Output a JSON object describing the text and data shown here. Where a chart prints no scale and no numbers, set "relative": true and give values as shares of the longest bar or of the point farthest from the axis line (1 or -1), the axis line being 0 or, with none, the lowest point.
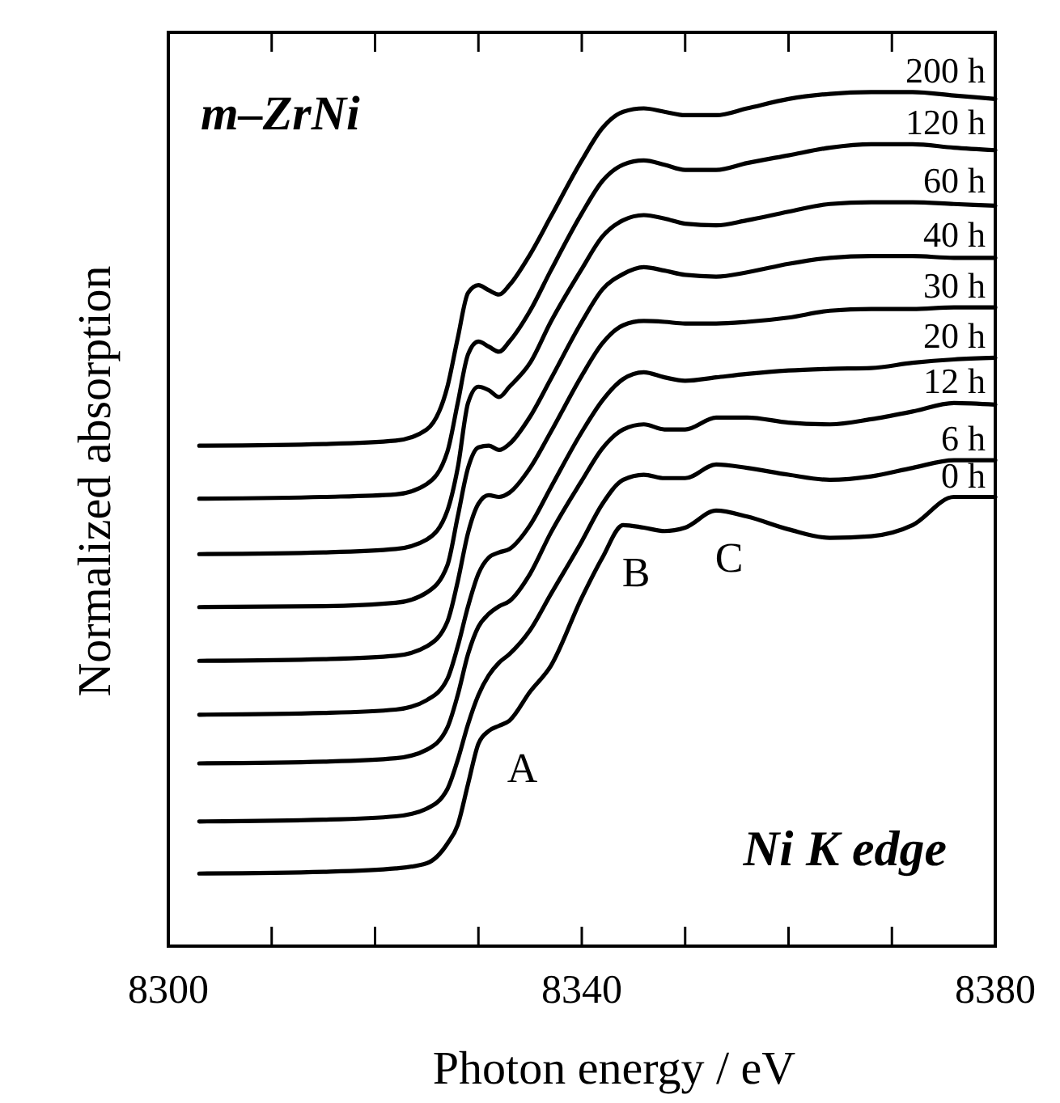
{
  "chart_data": {
    "type": "line",
    "relative": true,
    "xlabel": "Photon energy  /  eV",
    "ylabel": "Normalized absorption",
    "x": [
      8303,
      8315,
      8322,
      8325,
      8327,
      8328,
      8329,
      8330,
      8331,
      8332,
      8333,
      8335,
      8337,
      8340,
      8342,
      8344,
      8346,
      8348,
      8350,
      8353,
      8356,
      8360,
      8364,
      8368,
      8372,
      8376,
      8380
    ],
    "xlim": [
      8300,
      8380
    ],
    "xticks": [
      8300,
      {
        "value": 8310,
        "label": null
      },
      {
        "value": 8320,
        "label": null
      },
      {
        "value": 8330,
        "label": null
      },
      8340,
      {
        "value": 8350,
        "label": null
      },
      {
        "value": 8360,
        "label": null
      },
      {
        "value": 8370,
        "label": null
      },
      8380
    ],
    "marker": "none",
    "line_style": "solid",
    "legend": "right",
    "grid": false,
    "series": [
      {
        "name": "200 h",
        "color": "#000000",
        "values": [
          0.586,
          0.588,
          0.592,
          0.605,
          0.655,
          0.712,
          0.765,
          0.774,
          0.768,
          0.763,
          0.774,
          0.81,
          0.854,
          0.92,
          0.958,
          0.977,
          0.981,
          0.977,
          0.973,
          0.973,
          0.981,
          0.992,
          0.998,
          1.0,
          1.0,
          0.996,
          0.992
        ]
      },
      {
        "name": "120 h",
        "color": "#000000",
        "values": [
          0.524,
          0.526,
          0.529,
          0.541,
          0.579,
          0.636,
          0.693,
          0.708,
          0.702,
          0.696,
          0.708,
          0.744,
          0.791,
          0.858,
          0.896,
          0.915,
          0.92,
          0.915,
          0.909,
          0.909,
          0.917,
          0.926,
          0.935,
          0.939,
          0.939,
          0.935,
          0.932
        ]
      },
      {
        "name": "60 h",
        "color": "#000000",
        "values": [
          0.459,
          0.461,
          0.465,
          0.476,
          0.51,
          0.56,
          0.636,
          0.655,
          0.651,
          0.643,
          0.655,
          0.683,
          0.731,
          0.793,
          0.831,
          0.85,
          0.856,
          0.852,
          0.846,
          0.844,
          0.85,
          0.86,
          0.869,
          0.871,
          0.871,
          0.869,
          0.867
        ]
      },
      {
        "name": "40 h",
        "color": "#000000",
        "values": [
          0.397,
          0.398,
          0.402,
          0.414,
          0.446,
          0.503,
          0.56,
          0.584,
          0.586,
          0.581,
          0.588,
          0.62,
          0.664,
          0.731,
          0.769,
          0.787,
          0.795,
          0.791,
          0.786,
          0.784,
          0.789,
          0.799,
          0.806,
          0.808,
          0.808,
          0.806,
          0.806
        ]
      },
      {
        "name": "30 h",
        "color": "#000000",
        "values": [
          0.334,
          0.336,
          0.34,
          0.351,
          0.38,
          0.427,
          0.484,
          0.518,
          0.528,
          0.526,
          0.531,
          0.56,
          0.602,
          0.668,
          0.706,
          0.727,
          0.732,
          0.731,
          0.729,
          0.729,
          0.731,
          0.736,
          0.744,
          0.746,
          0.746,
          0.748,
          0.748
        ]
      },
      {
        "name": "20 h",
        "color": "#000000",
        "values": [
          0.271,
          0.273,
          0.277,
          0.288,
          0.313,
          0.351,
          0.398,
          0.436,
          0.455,
          0.461,
          0.465,
          0.493,
          0.537,
          0.602,
          0.639,
          0.664,
          0.672,
          0.666,
          0.662,
          0.666,
          0.67,
          0.674,
          0.676,
          0.677,
          0.683,
          0.687,
          0.689
        ]
      },
      {
        "name": "12 h",
        "color": "#000000",
        "values": [
          0.214,
          0.216,
          0.22,
          0.23,
          0.256,
          0.294,
          0.342,
          0.374,
          0.389,
          0.398,
          0.404,
          0.436,
          0.484,
          0.545,
          0.583,
          0.605,
          0.611,
          0.605,
          0.605,
          0.619,
          0.619,
          0.613,
          0.611,
          0.617,
          0.626,
          0.636,
          0.634
        ]
      },
      {
        "name": "6 h",
        "color": "#000000",
        "values": [
          0.146,
          0.148,
          0.152,
          0.161,
          0.184,
          0.218,
          0.26,
          0.294,
          0.317,
          0.332,
          0.342,
          0.37,
          0.412,
          0.474,
          0.518,
          0.546,
          0.552,
          0.548,
          0.548,
          0.564,
          0.56,
          0.552,
          0.546,
          0.55,
          0.56,
          0.569,
          0.569
        ]
      },
      {
        "name": "0 h",
        "color": "#000000",
        "values": [
          0.085,
          0.087,
          0.091,
          0.097,
          0.12,
          0.142,
          0.19,
          0.237,
          0.252,
          0.258,
          0.264,
          0.298,
          0.328,
          0.408,
          0.455,
          0.493,
          0.49,
          0.486,
          0.49,
          0.51,
          0.503,
          0.488,
          0.478,
          0.48,
          0.493,
          0.526,
          0.526
        ]
      }
    ],
    "annotations": [
      "m–ZrNi",
      "Ni K edge",
      {
        "text": "A",
        "x": 8333,
        "y": 0.264
      },
      {
        "text": "B",
        "x": 8344,
        "y": 0.493
      },
      {
        "text": "C",
        "x": 8353,
        "y": 0.51
      }
    ]
  }
}
